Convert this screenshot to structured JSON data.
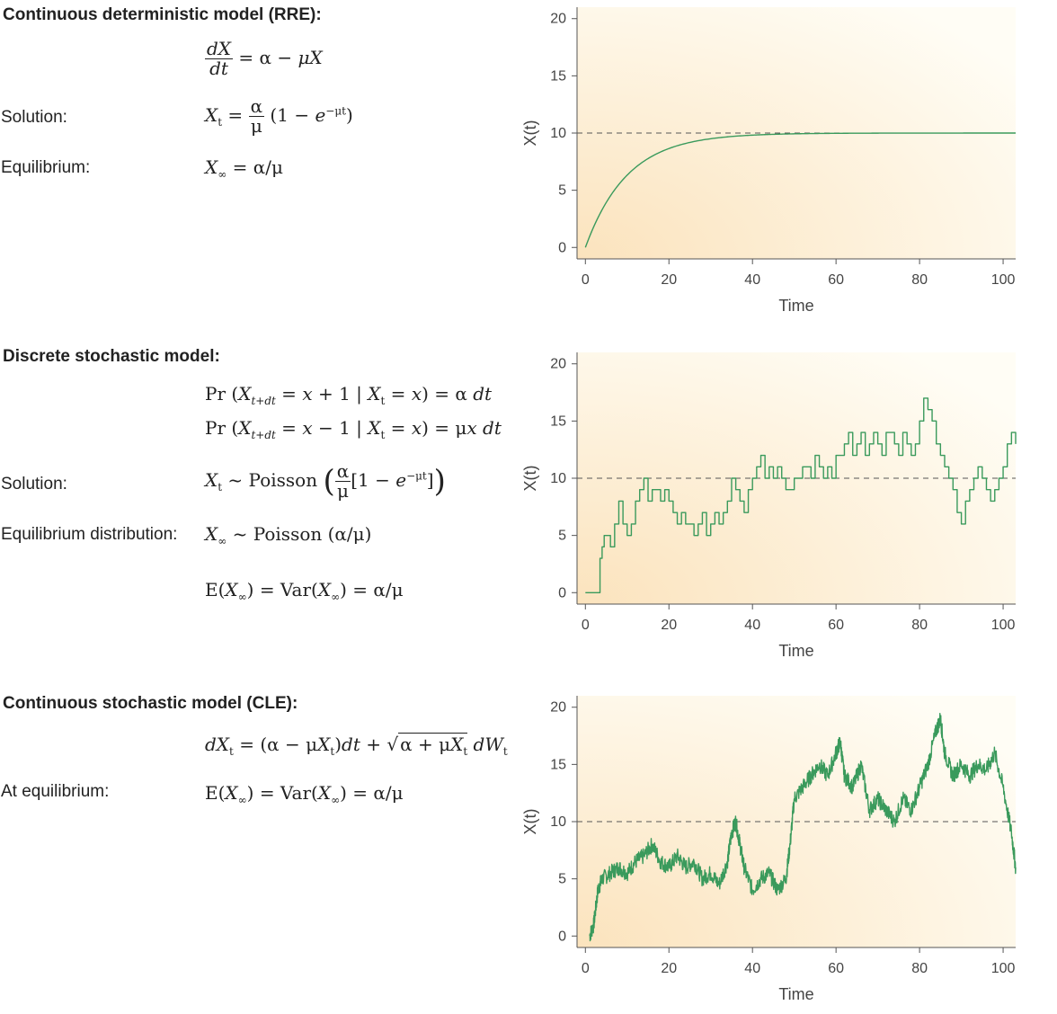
{
  "sections": [
    {
      "title": "Continuous deterministic model (RRE):",
      "label_solution": "Solution:",
      "label_equilibrium": "Equilibrium:"
    },
    {
      "title": "Discrete stochastic model:",
      "label_solution": "Solution:",
      "label_equilibrium": "Equilibrium distribution:"
    },
    {
      "title": "Continuous stochastic model (CLE):",
      "label_equilibrium": "At equilibrium:"
    }
  ],
  "colors": {
    "line": "#3a9a5c",
    "bg_warm": "#fbe3bd",
    "bg_light": "#fffdf5",
    "axis": "#555555"
  },
  "chart_data": [
    {
      "type": "line",
      "xlabel": "Time",
      "ylabel": "X(t)",
      "xlim": [
        -2,
        103
      ],
      "ylim": [
        -1,
        21
      ],
      "xticks": [
        0,
        20,
        40,
        60,
        80,
        100
      ],
      "yticks": [
        0,
        5,
        10,
        15,
        20
      ],
      "reference_line": 10,
      "series_kind": "deterministic",
      "alpha": 1,
      "mu": 0.1,
      "x_start": 0,
      "x_end": 103
    },
    {
      "type": "line",
      "xlabel": "Time",
      "ylabel": "X(t)",
      "xlim": [
        -2,
        103
      ],
      "ylim": [
        -1,
        21
      ],
      "xticks": [
        0,
        20,
        40,
        60,
        80,
        100
      ],
      "yticks": [
        0,
        5,
        10,
        15,
        20
      ],
      "reference_line": 10,
      "series_kind": "step",
      "points": [
        [
          0,
          0
        ],
        [
          3,
          0
        ],
        [
          3.5,
          3
        ],
        [
          4,
          4
        ],
        [
          4.5,
          5
        ],
        [
          6,
          4
        ],
        [
          7,
          6
        ],
        [
          8,
          8
        ],
        [
          9,
          6
        ],
        [
          10,
          5
        ],
        [
          11,
          6
        ],
        [
          12,
          8
        ],
        [
          13,
          9
        ],
        [
          14,
          10
        ],
        [
          15,
          8
        ],
        [
          16,
          9
        ],
        [
          17,
          9
        ],
        [
          18,
          8
        ],
        [
          19,
          9
        ],
        [
          20,
          8
        ],
        [
          21,
          7
        ],
        [
          22,
          6
        ],
        [
          23,
          7
        ],
        [
          24,
          6
        ],
        [
          25,
          6
        ],
        [
          26,
          5
        ],
        [
          27,
          6
        ],
        [
          28,
          7
        ],
        [
          29,
          5
        ],
        [
          30,
          6
        ],
        [
          31,
          7
        ],
        [
          32,
          6
        ],
        [
          33,
          7
        ],
        [
          34,
          8
        ],
        [
          35,
          10
        ],
        [
          36,
          9
        ],
        [
          37,
          8
        ],
        [
          38,
          7
        ],
        [
          39,
          9
        ],
        [
          40,
          10
        ],
        [
          41,
          11
        ],
        [
          42,
          12
        ],
        [
          43,
          10
        ],
        [
          44,
          11
        ],
        [
          45,
          10
        ],
        [
          46,
          11
        ],
        [
          47,
          10
        ],
        [
          48,
          9
        ],
        [
          50,
          10
        ],
        [
          52,
          11
        ],
        [
          54,
          10
        ],
        [
          55,
          12
        ],
        [
          56,
          11
        ],
        [
          57,
          10
        ],
        [
          58,
          11
        ],
        [
          59,
          10
        ],
        [
          60,
          12
        ],
        [
          62,
          13
        ],
        [
          63,
          14
        ],
        [
          64,
          12
        ],
        [
          65,
          13
        ],
        [
          66,
          14
        ],
        [
          67,
          12
        ],
        [
          68,
          13
        ],
        [
          69,
          14
        ],
        [
          70,
          13
        ],
        [
          71,
          12
        ],
        [
          72,
          14
        ],
        [
          74,
          13
        ],
        [
          75,
          12
        ],
        [
          76,
          14
        ],
        [
          77,
          13
        ],
        [
          78,
          12
        ],
        [
          79,
          13
        ],
        [
          80,
          15
        ],
        [
          81,
          17
        ],
        [
          82,
          16
        ],
        [
          83,
          15
        ],
        [
          84,
          13
        ],
        [
          85,
          12
        ],
        [
          86,
          11
        ],
        [
          87,
          10
        ],
        [
          88,
          9
        ],
        [
          89,
          7
        ],
        [
          90,
          6
        ],
        [
          91,
          8
        ],
        [
          92,
          9
        ],
        [
          93,
          10
        ],
        [
          94,
          11
        ],
        [
          95,
          10
        ],
        [
          96,
          9
        ],
        [
          97,
          8
        ],
        [
          98,
          9
        ],
        [
          99,
          10
        ],
        [
          100,
          11
        ],
        [
          101,
          13
        ],
        [
          102,
          14
        ],
        [
          103,
          13
        ]
      ]
    },
    {
      "type": "line",
      "xlabel": "Time",
      "ylabel": "X(t)",
      "xlim": [
        -2,
        103
      ],
      "ylim": [
        -1,
        21
      ],
      "xticks": [
        0,
        20,
        40,
        60,
        80,
        100
      ],
      "yticks": [
        0,
        5,
        10,
        15,
        20
      ],
      "reference_line": 10,
      "series_kind": "noisy",
      "points": [
        [
          1,
          0
        ],
        [
          2,
          1
        ],
        [
          3,
          4
        ],
        [
          4,
          5
        ],
        [
          6,
          5.5
        ],
        [
          8,
          6
        ],
        [
          10,
          5.5
        ],
        [
          12,
          6.5
        ],
        [
          14,
          7
        ],
        [
          16,
          8
        ],
        [
          18,
          6.5
        ],
        [
          20,
          6
        ],
        [
          22,
          7
        ],
        [
          24,
          6
        ],
        [
          26,
          6.5
        ],
        [
          28,
          5
        ],
        [
          30,
          5.5
        ],
        [
          32,
          4.5
        ],
        [
          34,
          6.5
        ],
        [
          35,
          9
        ],
        [
          36,
          10
        ],
        [
          37,
          8
        ],
        [
          38,
          6
        ],
        [
          40,
          4
        ],
        [
          42,
          5
        ],
        [
          44,
          5.5
        ],
        [
          46,
          4
        ],
        [
          48,
          5
        ],
        [
          49,
          8
        ],
        [
          50,
          12
        ],
        [
          52,
          13
        ],
        [
          54,
          14
        ],
        [
          56,
          15
        ],
        [
          58,
          14
        ],
        [
          60,
          16
        ],
        [
          61,
          17
        ],
        [
          62,
          14
        ],
        [
          64,
          13
        ],
        [
          66,
          15
        ],
        [
          68,
          11
        ],
        [
          70,
          12
        ],
        [
          72,
          11
        ],
        [
          74,
          10
        ],
        [
          76,
          12
        ],
        [
          78,
          11
        ],
        [
          80,
          13
        ],
        [
          82,
          15
        ],
        [
          84,
          18
        ],
        [
          85,
          19
        ],
        [
          86,
          16
        ],
        [
          88,
          14
        ],
        [
          90,
          15
        ],
        [
          92,
          14
        ],
        [
          94,
          15
        ],
        [
          96,
          14.5
        ],
        [
          98,
          16
        ],
        [
          100,
          13
        ],
        [
          102,
          9
        ],
        [
          103,
          6
        ]
      ]
    }
  ]
}
